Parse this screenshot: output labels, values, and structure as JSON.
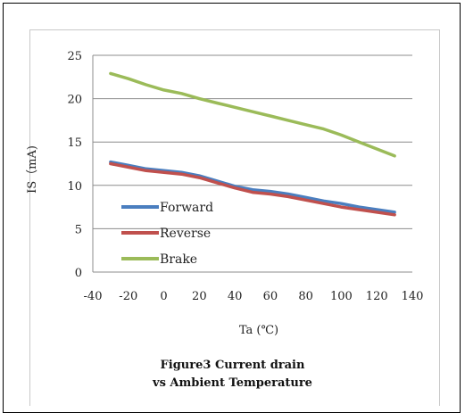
{
  "chart_data": {
    "type": "line",
    "title": "",
    "xlabel": "Ta (℃)",
    "ylabel": "IS（mA)",
    "xlim": [
      -40,
      140
    ],
    "ylim": [
      0,
      25
    ],
    "xticks": [
      -40,
      -20,
      0,
      20,
      40,
      60,
      80,
      100,
      120,
      140
    ],
    "yticks": [
      0,
      5,
      10,
      15,
      20,
      25
    ],
    "grid": "horizontal",
    "legend_position": "lower-left",
    "series": [
      {
        "name": "Forward",
        "color": "#4a7ebf",
        "x": [
          -30,
          -20,
          -10,
          0,
          10,
          20,
          30,
          40,
          50,
          60,
          70,
          80,
          90,
          100,
          110,
          120,
          130
        ],
        "y": [
          12.7,
          12.3,
          11.9,
          11.7,
          11.5,
          11.1,
          10.5,
          9.9,
          9.5,
          9.3,
          9.0,
          8.6,
          8.2,
          7.9,
          7.5,
          7.2,
          6.9
        ]
      },
      {
        "name": "Reverse",
        "color": "#c0504d",
        "x": [
          -30,
          -20,
          -10,
          0,
          10,
          20,
          30,
          40,
          50,
          60,
          70,
          80,
          90,
          100,
          110,
          120,
          130
        ],
        "y": [
          12.5,
          12.1,
          11.7,
          11.5,
          11.3,
          10.9,
          10.3,
          9.7,
          9.2,
          9.0,
          8.7,
          8.3,
          7.9,
          7.5,
          7.2,
          6.9,
          6.6
        ]
      },
      {
        "name": "Brake",
        "color": "#9bbb59",
        "x": [
          -30,
          -20,
          -10,
          0,
          10,
          20,
          30,
          40,
          50,
          60,
          70,
          80,
          90,
          100,
          110,
          120,
          130
        ],
        "y": [
          22.9,
          22.3,
          21.6,
          21.0,
          20.6,
          20.0,
          19.5,
          19.0,
          18.5,
          18.0,
          17.5,
          17.0,
          16.5,
          15.8,
          15.0,
          14.2,
          13.4
        ]
      }
    ],
    "caption_line1": "Figure3 Current drain",
    "caption_line2": "vs Ambient Temperature"
  }
}
